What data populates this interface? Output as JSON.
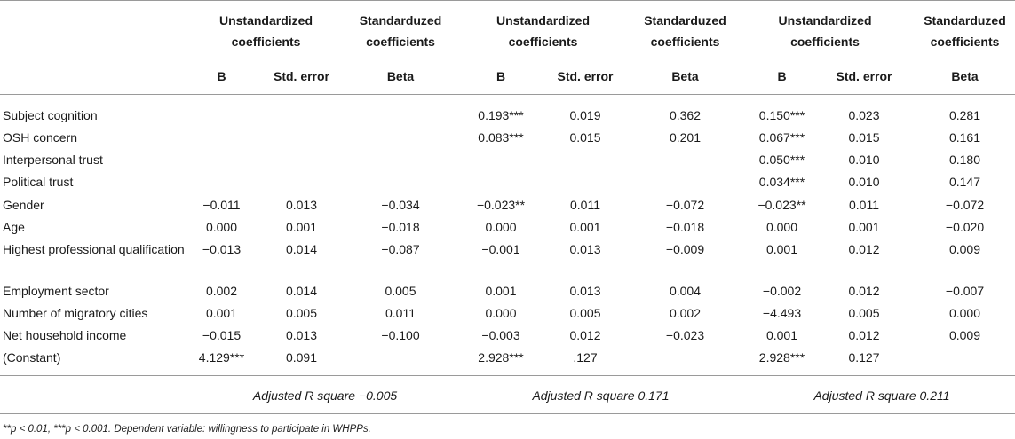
{
  "header": {
    "groups": [
      {
        "unstd": "Unstandardized coefficients",
        "std": "Standarduzed coefficients"
      },
      {
        "unstd": "Unstandardized coefficients",
        "std": "Standarduzed coefficients"
      },
      {
        "unstd": "Unstandardized coefficients",
        "std": "Standarduzed coefficients"
      }
    ],
    "columns": [
      "B",
      "Std. error",
      "Beta",
      "B",
      "Std. error",
      "Beta",
      "B",
      "Std. error",
      "Beta"
    ]
  },
  "rows": [
    {
      "label": "Subject cognition",
      "cells": [
        "",
        "",
        "",
        "0.193***",
        "0.019",
        "0.362",
        "0.150***",
        "0.023",
        "0.281"
      ]
    },
    {
      "label": "OSH concern",
      "cells": [
        "",
        "",
        "",
        "0.083***",
        "0.015",
        "0.201",
        "0.067***",
        "0.015",
        "0.161"
      ]
    },
    {
      "label": "Interpersonal trust",
      "cells": [
        "",
        "",
        "",
        "",
        "",
        "",
        "0.050***",
        "0.010",
        "0.180"
      ]
    },
    {
      "label": "Political trust",
      "cells": [
        "",
        "",
        "",
        "",
        "",
        "",
        "0.034***",
        "0.010",
        "0.147"
      ]
    },
    {
      "label": "Gender",
      "cells": [
        "−0.011",
        "0.013",
        "−0.034",
        "−0.023**",
        "0.011",
        "−0.072",
        "−0.023**",
        "0.011",
        "−0.072"
      ]
    },
    {
      "label": "Age",
      "cells": [
        "0.000",
        "0.001",
        "−0.018",
        "0.000",
        "0.001",
        "−0.018",
        "0.000",
        "0.001",
        "−0.020"
      ]
    },
    {
      "label": "Highest professional qualification",
      "cells": [
        "−0.013",
        "0.014",
        "−0.087",
        "−0.001",
        "0.013",
        "−0.009",
        "0.001",
        "0.012",
        "0.009"
      ]
    },
    {
      "label": "Employment sector",
      "cells": [
        "0.002",
        "0.014",
        "0.005",
        "0.001",
        "0.013",
        "0.004",
        "−0.002",
        "0.012",
        "−0.007"
      ]
    },
    {
      "label": "Number of migratory cities",
      "cells": [
        "0.001",
        "0.005",
        "0.011",
        "0.000",
        "0.005",
        "0.002",
        "−4.493",
        "0.005",
        "0.000"
      ]
    },
    {
      "label": "Net household income",
      "cells": [
        "−0.015",
        "0.013",
        "−0.100",
        "−0.003",
        "0.012",
        "−0.023",
        "0.001",
        "0.012",
        "0.009"
      ]
    },
    {
      "label": "(Constant)",
      "cells": [
        "4.129***",
        "0.091",
        "",
        "2.928***",
        ".127",
        "",
        "2.928***",
        "0.127",
        ""
      ]
    }
  ],
  "r_squared": [
    "Adjusted R square −0.005",
    "Adjusted R square 0.171",
    "Adjusted R square 0.211"
  ],
  "footnote": "**p < 0.01, ***p < 0.001. Dependent variable: willingness to participate in WHPPs."
}
